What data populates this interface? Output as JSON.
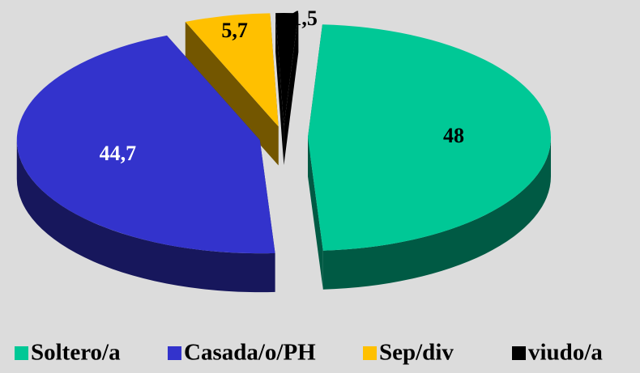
{
  "chart_data": {
    "type": "pie3d",
    "categories": [
      "Soltero/a",
      "Casada/o/PH",
      "Sep/div",
      "viudo/a"
    ],
    "values": [
      48,
      44.7,
      5.7,
      1.5
    ],
    "value_labels": [
      "48",
      "44,7",
      "5,7",
      "1,5"
    ],
    "colors": [
      "#00c896",
      "#3333cc",
      "#ffc000",
      "#000000"
    ],
    "legend": "bottom"
  }
}
